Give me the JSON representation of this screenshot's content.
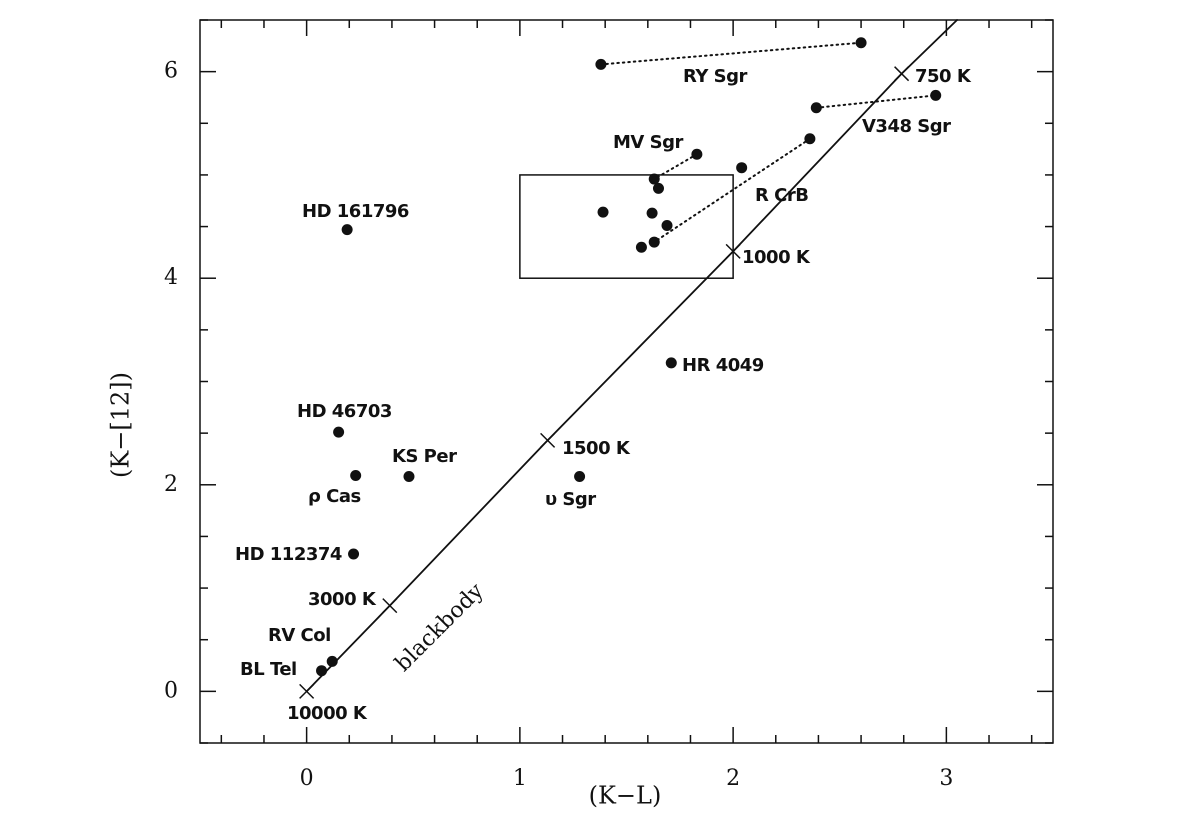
{
  "chart_data": {
    "type": "scatter",
    "xlabel": "(K−L)",
    "ylabel": "(K−[12])",
    "xlim": [
      -0.5,
      3.5
    ],
    "ylim": [
      -0.5,
      6.5
    ],
    "xticks": [
      0,
      1,
      2,
      3
    ],
    "yticks": [
      0,
      2,
      4,
      6
    ],
    "xminorticks": [
      -0.4,
      -0.2,
      0.2,
      0.4,
      0.6,
      0.8,
      1.2,
      1.4,
      1.6,
      1.8,
      2.2,
      2.4,
      2.6,
      2.8,
      3.2,
      3.4
    ],
    "yminorticks": [
      -0.5,
      0.5,
      1,
      1.5,
      2.5,
      3,
      3.5,
      4.5,
      5,
      5.5,
      6.5
    ],
    "color": "#111111",
    "box": {
      "x": [
        1,
        2
      ],
      "y": [
        4,
        5
      ]
    },
    "series": [
      {
        "name": "RY Sgr",
        "x": [
          1.38,
          2.6
        ],
        "values": [
          6.07,
          6.28
        ],
        "line": "dotted"
      },
      {
        "name": "V348 Sgr",
        "x": [
          2.39,
          2.95
        ],
        "values": [
          5.65,
          5.77
        ],
        "line": "dotted"
      },
      {
        "name": "MV Sgr",
        "x": [
          1.83,
          1.63
        ],
        "values": [
          5.2,
          4.96
        ],
        "line": "dotted"
      },
      {
        "name": "R CrB",
        "x": [
          2.36,
          1.63
        ],
        "values": [
          5.35,
          4.35
        ],
        "line": "dotted"
      },
      {
        "x": [
          2.04
        ],
        "values": [
          5.07
        ]
      },
      {
        "x": [
          1.39,
          1.62,
          1.65,
          1.69,
          1.57
        ],
        "values": [
          4.64,
          4.63,
          4.87,
          4.51,
          4.3
        ]
      },
      {
        "name": "HD 161796",
        "x": [
          0.19
        ],
        "values": [
          4.47
        ]
      },
      {
        "name": "HR 4049",
        "x": [
          1.71
        ],
        "values": [
          3.18
        ]
      },
      {
        "name": "HD 46703",
        "x": [
          0.15
        ],
        "values": [
          2.51
        ]
      },
      {
        "name": "ρ Cas",
        "x": [
          0.23
        ],
        "values": [
          2.09
        ]
      },
      {
        "name": "KS Per",
        "x": [
          0.48
        ],
        "values": [
          2.08
        ]
      },
      {
        "name": "υ Sgr",
        "x": [
          1.28
        ],
        "values": [
          2.08
        ]
      },
      {
        "name": "HD 112374",
        "x": [
          0.22
        ],
        "values": [
          1.33
        ]
      },
      {
        "name": "RV Col",
        "x": [
          0.12
        ],
        "values": [
          0.29
        ]
      },
      {
        "name": "BL Tel",
        "x": [
          0.07
        ],
        "values": [
          0.2
        ]
      },
      {
        "name": "blackbody",
        "x": [
          0,
          0.39,
          1.13,
          2.0,
          2.79,
          3.05
        ],
        "values": [
          0,
          0.83,
          2.43,
          4.26,
          5.98,
          6.5
        ],
        "line": "solid",
        "point_labels": [
          "10000 K",
          "3000 K",
          "1500 K",
          "1000 K",
          "750 K",
          null
        ]
      }
    ]
  }
}
